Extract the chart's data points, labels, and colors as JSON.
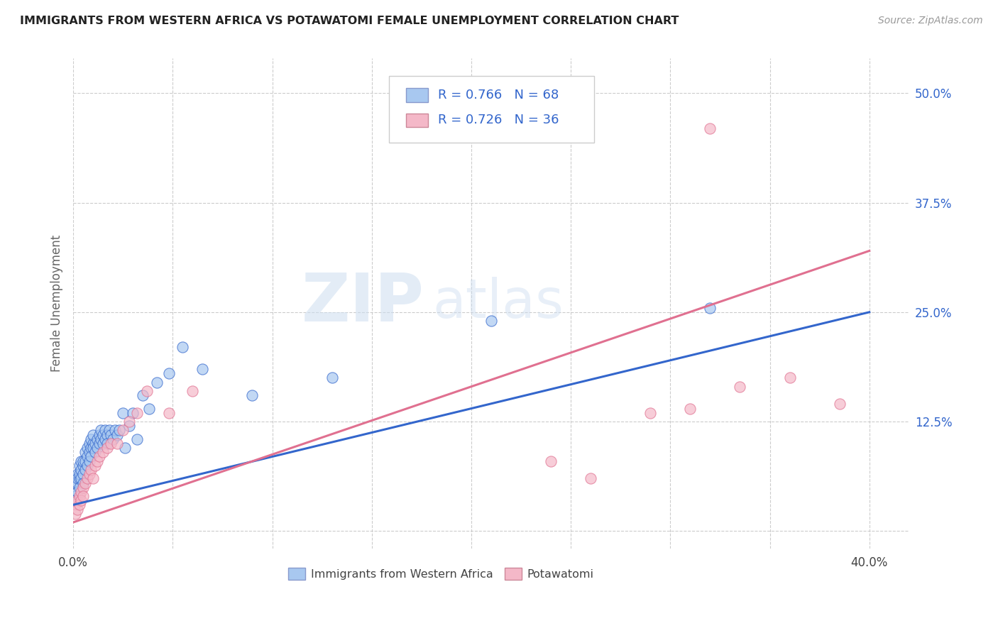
{
  "title": "IMMIGRANTS FROM WESTERN AFRICA VS POTAWATOMI FEMALE UNEMPLOYMENT CORRELATION CHART",
  "source": "Source: ZipAtlas.com",
  "ylabel": "Female Unemployment",
  "xlim": [
    0.0,
    0.42
  ],
  "ylim": [
    -0.02,
    0.54
  ],
  "xtick_positions": [
    0.0,
    0.05,
    0.1,
    0.15,
    0.2,
    0.25,
    0.3,
    0.35,
    0.4
  ],
  "xticklabels": [
    "0.0%",
    "",
    "",
    "",
    "",
    "",
    "",
    "",
    "40.0%"
  ],
  "ytick_positions": [
    0.0,
    0.125,
    0.25,
    0.375,
    0.5
  ],
  "ytick_labels": [
    "",
    "12.5%",
    "25.0%",
    "37.5%",
    "50.0%"
  ],
  "blue_R": "0.766",
  "blue_N": "68",
  "pink_R": "0.726",
  "pink_N": "36",
  "blue_color": "#a8c8f0",
  "pink_color": "#f4b8c8",
  "blue_line_color": "#3366cc",
  "pink_line_color": "#e07090",
  "legend_label_blue": "Immigrants from Western Africa",
  "legend_label_pink": "Potawatomi",
  "blue_line_y_start": 0.03,
  "blue_line_y_end": 0.25,
  "pink_line_y_start": 0.01,
  "pink_line_y_end": 0.32,
  "blue_points_x": [
    0.001,
    0.001,
    0.001,
    0.002,
    0.002,
    0.002,
    0.002,
    0.003,
    0.003,
    0.003,
    0.003,
    0.004,
    0.004,
    0.004,
    0.005,
    0.005,
    0.005,
    0.005,
    0.006,
    0.006,
    0.006,
    0.007,
    0.007,
    0.007,
    0.008,
    0.008,
    0.008,
    0.009,
    0.009,
    0.009,
    0.01,
    0.01,
    0.01,
    0.011,
    0.011,
    0.012,
    0.012,
    0.013,
    0.013,
    0.014,
    0.014,
    0.015,
    0.015,
    0.016,
    0.016,
    0.017,
    0.017,
    0.018,
    0.019,
    0.02,
    0.021,
    0.022,
    0.023,
    0.025,
    0.026,
    0.028,
    0.03,
    0.032,
    0.035,
    0.038,
    0.042,
    0.048,
    0.055,
    0.065,
    0.09,
    0.13,
    0.21,
    0.32
  ],
  "blue_points_y": [
    0.04,
    0.055,
    0.035,
    0.055,
    0.065,
    0.045,
    0.06,
    0.06,
    0.075,
    0.05,
    0.065,
    0.07,
    0.08,
    0.06,
    0.075,
    0.065,
    0.08,
    0.055,
    0.08,
    0.09,
    0.07,
    0.085,
    0.095,
    0.075,
    0.09,
    0.1,
    0.08,
    0.095,
    0.105,
    0.085,
    0.1,
    0.095,
    0.11,
    0.1,
    0.09,
    0.105,
    0.095,
    0.11,
    0.1,
    0.105,
    0.115,
    0.11,
    0.1,
    0.115,
    0.105,
    0.11,
    0.1,
    0.115,
    0.11,
    0.105,
    0.115,
    0.11,
    0.115,
    0.135,
    0.095,
    0.12,
    0.135,
    0.105,
    0.155,
    0.14,
    0.17,
    0.18,
    0.21,
    0.185,
    0.155,
    0.175,
    0.24,
    0.255
  ],
  "pink_points_x": [
    0.001,
    0.001,
    0.002,
    0.002,
    0.003,
    0.003,
    0.004,
    0.004,
    0.005,
    0.005,
    0.006,
    0.007,
    0.008,
    0.009,
    0.01,
    0.011,
    0.012,
    0.013,
    0.015,
    0.017,
    0.019,
    0.022,
    0.025,
    0.028,
    0.032,
    0.037,
    0.048,
    0.06,
    0.24,
    0.26,
    0.29,
    0.31,
    0.335,
    0.36,
    0.385,
    0.32
  ],
  "pink_points_y": [
    0.03,
    0.02,
    0.035,
    0.025,
    0.04,
    0.03,
    0.045,
    0.035,
    0.05,
    0.04,
    0.055,
    0.06,
    0.065,
    0.07,
    0.06,
    0.075,
    0.08,
    0.085,
    0.09,
    0.095,
    0.1,
    0.1,
    0.115,
    0.125,
    0.135,
    0.16,
    0.135,
    0.16,
    0.08,
    0.06,
    0.135,
    0.14,
    0.165,
    0.175,
    0.145,
    0.46
  ]
}
